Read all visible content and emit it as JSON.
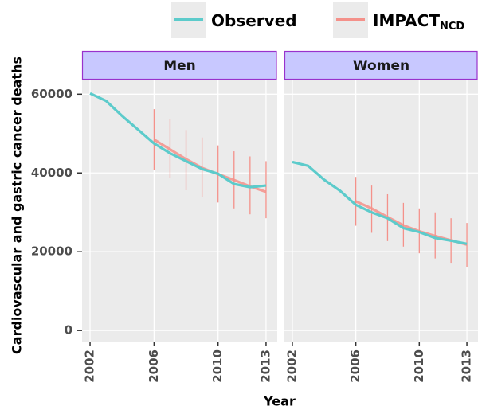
{
  "chart_data": {
    "type": "line",
    "y_label": "Cardiovascular and gastric cancer deaths",
    "x_label": "Year",
    "legend": "top",
    "grid": true,
    "series": [
      {
        "name": "Observed",
        "color": "#5ccbcb"
      },
      {
        "name": "IMPACT",
        "subscript": "NCD",
        "color": "#f4918a"
      }
    ],
    "xlim": [
      2001.5,
      2013.7
    ],
    "xticks": [
      2002,
      2006,
      2010,
      2013
    ],
    "ylim": [
      -3000,
      63500
    ],
    "yticks": [
      0,
      20000,
      40000,
      60000
    ],
    "panels": [
      {
        "title": "Men",
        "x": [
          2002,
          2003,
          2004,
          2005,
          2006,
          2007,
          2008,
          2009,
          2010,
          2011,
          2012,
          2013
        ],
        "series": [
          {
            "values": [
              60200,
              58300,
              54500,
              51000,
              47500,
              45000,
              43000,
              41000,
              39800,
              37200,
              36400,
              36800
            ]
          },
          {
            "values": [
              null,
              null,
              null,
              null,
              48500,
              46000,
              43500,
              41300,
              39700,
              38200,
              36600,
              35200
            ],
            "lower": [
              null,
              null,
              null,
              null,
              40700,
              38800,
              35600,
              34000,
              32500,
              31000,
              29500,
              28500
            ],
            "upper": [
              null,
              null,
              null,
              null,
              56200,
              53600,
              50900,
              49000,
              47000,
              45500,
              44200,
              43000
            ]
          }
        ]
      },
      {
        "title": "Women",
        "x": [
          2002,
          2003,
          2004,
          2005,
          2006,
          2007,
          2008,
          2009,
          2010,
          2011,
          2012,
          2013
        ],
        "series": [
          {
            "values": [
              42800,
              41800,
              38300,
              35500,
              31900,
              30000,
              28500,
              26000,
              25000,
              23500,
              22800,
              22000
            ]
          },
          {
            "values": [
              null,
              null,
              null,
              null,
              32800,
              31000,
              28800,
              26700,
              25200,
              24000,
              22900,
              21800
            ],
            "lower": [
              null,
              null,
              null,
              null,
              26600,
              24800,
              22700,
              21300,
              19600,
              18300,
              17200,
              16000
            ],
            "upper": [
              null,
              null,
              null,
              null,
              39000,
              36800,
              34600,
              32400,
              31000,
              30000,
              28500,
              27300
            ]
          }
        ]
      }
    ]
  }
}
